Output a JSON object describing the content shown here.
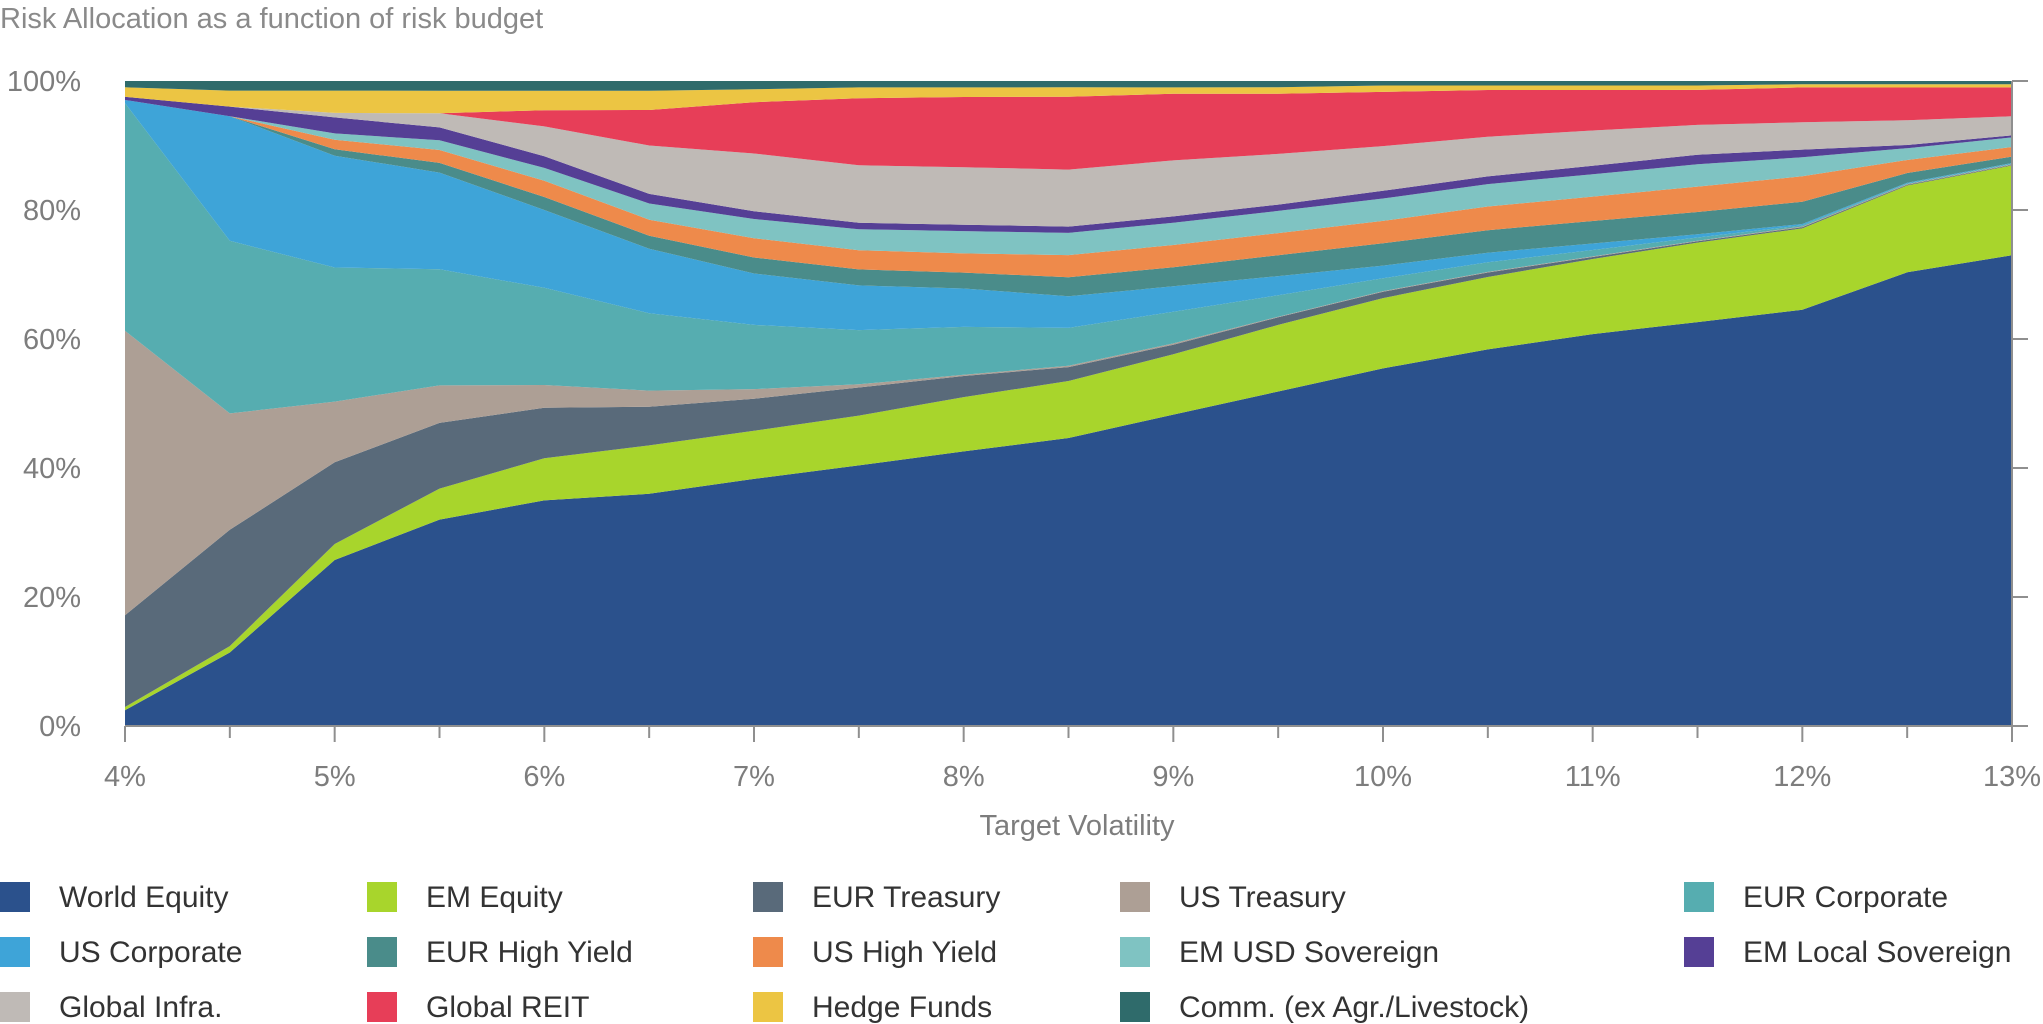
{
  "chart_data": {
    "type": "area",
    "stacked": true,
    "title": "Risk Allocation as a function of risk budget",
    "xlabel": "Target Volatility",
    "ylabel": "",
    "x": [
      4,
      4.5,
      5,
      5.5,
      6,
      6.5,
      7,
      7.5,
      8,
      8.5,
      9,
      9.5,
      10,
      10.5,
      11,
      11.5,
      12,
      12.5,
      13
    ],
    "x_tick_values": [
      4,
      5,
      6,
      7,
      8,
      9,
      10,
      11,
      12,
      13
    ],
    "x_tick_labels": [
      "4%",
      "5%",
      "6%",
      "7%",
      "8%",
      "9%",
      "10%",
      "11%",
      "12%",
      "13%"
    ],
    "y_tick_values": [
      0,
      20,
      40,
      60,
      80,
      100
    ],
    "y_tick_labels": [
      "0%",
      "20%",
      "40%",
      "60%",
      "80%",
      "100%"
    ],
    "xlim": [
      4,
      13
    ],
    "ylim": [
      0,
      100
    ],
    "grid": false,
    "legend_position": "bottom",
    "series": [
      {
        "name": "World Equity",
        "color": "#2b518c",
        "values": [
          2.5,
          11.5,
          26,
          32,
          34.8,
          36,
          38.5,
          40.8,
          43,
          45.5,
          49,
          52.8,
          56,
          58.8,
          61,
          63.5,
          65.5,
          69.5,
          73.5
        ]
      },
      {
        "name": "EM Equity",
        "color": "#a8d52c",
        "values": [
          0.5,
          1,
          2.5,
          4.8,
          6.5,
          7.5,
          7.5,
          7.8,
          8.5,
          9,
          9.5,
          10.5,
          11,
          11.3,
          11.7,
          12.5,
          12.8,
          13.3,
          14
        ]
      },
      {
        "name": "EUR Treasury",
        "color": "#596a7a",
        "values": [
          14.5,
          18.2,
          12.8,
          10.2,
          7.8,
          6,
          5,
          4.4,
          3.3,
          2.2,
          1.5,
          1.2,
          1,
          0.7,
          0.3,
          0.2,
          0.2,
          0.1,
          0.1
        ]
      },
      {
        "name": "US Treasury",
        "color": "#ad9f95",
        "values": [
          45,
          18.2,
          9.5,
          5.8,
          3.5,
          2.5,
          1.5,
          0.5,
          0.2,
          0.2,
          0.2,
          0.1,
          0.1,
          0.1,
          0.1,
          0.1,
          0.1,
          0.1,
          0.1
        ]
      },
      {
        "name": "EUR Corporate",
        "color": "#56adb0",
        "values": [
          36,
          27,
          21,
          18,
          15,
          12,
          10,
          8.5,
          7.5,
          6,
          5,
          3.4,
          2,
          1.5,
          1,
          0.5,
          0.2,
          0.1,
          0.1
        ]
      },
      {
        "name": "US Corporate",
        "color": "#3ea4d8",
        "values": [
          0.5,
          19.5,
          17.5,
          15,
          12,
          10,
          8,
          7,
          6,
          5,
          4,
          3,
          2,
          1.5,
          1,
          0.5,
          0.2,
          0.1,
          0.1
        ]
      },
      {
        "name": "EUR High Yield",
        "color": "#4a8c8a",
        "values": [
          0,
          0,
          1,
          1.5,
          2,
          2,
          2.5,
          2.5,
          2.5,
          3,
          3,
          3.3,
          3.5,
          3.5,
          3.5,
          3.5,
          3.5,
          1.5,
          1
        ]
      },
      {
        "name": "US High Yield",
        "color": "#ee8a4b",
        "values": [
          0,
          0,
          1.5,
          2,
          2.5,
          2.5,
          3,
          3,
          3,
          3.5,
          3.5,
          3.5,
          3.5,
          3.7,
          3.8,
          4,
          4,
          2,
          1.5
        ]
      },
      {
        "name": "EM USD Sovereign",
        "color": "#7fc3c2",
        "values": [
          0,
          0,
          1,
          1.5,
          2,
          2.5,
          3,
          3.3,
          3.5,
          3.5,
          3.5,
          3.5,
          3.5,
          3.5,
          3.5,
          3.5,
          3,
          1.8,
          1.5
        ]
      },
      {
        "name": "EM Local Sovereign",
        "color": "#553f95",
        "values": [
          0.5,
          1.5,
          2.5,
          2,
          1.8,
          1.5,
          1.2,
          1,
          1,
          1,
          1,
          1,
          1.2,
          1.2,
          1.3,
          1.5,
          1.2,
          0.5,
          0.3
        ]
      },
      {
        "name": "Global Infra.",
        "color": "#bfbab6",
        "values": [
          0,
          0,
          0.7,
          2.2,
          4.6,
          7.5,
          9,
          9,
          9,
          9,
          8.8,
          8,
          7,
          6.2,
          5.5,
          4.7,
          4.3,
          3.8,
          3
        ]
      },
      {
        "name": "Global REIT",
        "color": "#e73e58",
        "values": [
          0,
          0,
          0,
          0,
          2.5,
          5.5,
          8,
          10.5,
          11,
          11.5,
          10.5,
          9.5,
          8.5,
          7.3,
          6.3,
          5.5,
          5.5,
          5,
          4.5
        ]
      },
      {
        "name": "Hedge Funds",
        "color": "#ecc543",
        "values": [
          1.5,
          2.5,
          3.5,
          3.5,
          3,
          3,
          2,
          1.7,
          1.5,
          1.5,
          1,
          1,
          1,
          0.7,
          0.7,
          0.7,
          0.5,
          0.5,
          0.5
        ]
      },
      {
        "name": "Comm. (ex Agr./Livestock)",
        "color": "#2f6b6b",
        "values": [
          1,
          1.5,
          1.5,
          1.5,
          1.5,
          1.5,
          1.3,
          1,
          1,
          1,
          1,
          1,
          0.7,
          0.7,
          0.7,
          0.7,
          0.5,
          0.5,
          0.5
        ]
      }
    ]
  }
}
